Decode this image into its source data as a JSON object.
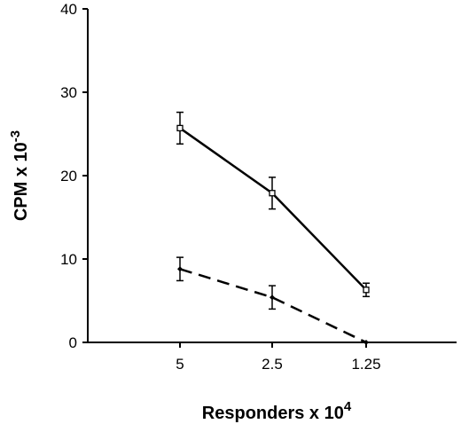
{
  "chart_data": {
    "type": "line",
    "title": "",
    "xlabel": "Responders x 10",
    "xlabel_sup": "4",
    "ylabel": "CPM x 10",
    "ylabel_sup": "-3",
    "categories": [
      "5",
      "2.5",
      "1.25"
    ],
    "ylim": [
      0,
      40
    ],
    "yticks": [
      "0",
      "10",
      "20",
      "30",
      "40"
    ],
    "grid": false,
    "legend": "none",
    "series": [
      {
        "values": [
          25.7,
          17.9,
          6.3
        ],
        "errors": [
          1.9,
          1.9,
          0.8
        ],
        "style": "solid",
        "marker": "open-square",
        "color": "#000000"
      },
      {
        "values": [
          8.8,
          5.4,
          0
        ],
        "errors": [
          1.4,
          1.4,
          0
        ],
        "style": "dashed",
        "marker": "filled-diamond",
        "color": "#000000"
      }
    ]
  }
}
